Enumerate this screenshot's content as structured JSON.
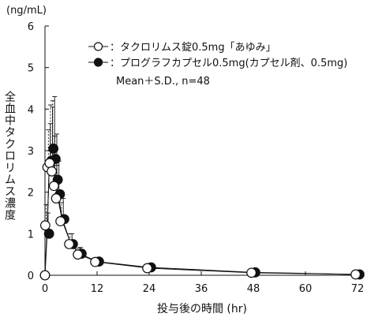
{
  "chart_data": {
    "type": "line",
    "unit_label": "(ng/mL)",
    "ylabel": "全血中タクロリムス濃度",
    "xlabel": "投与後の時間 (hr)",
    "xlim": [
      0,
      72
    ],
    "ylim": [
      0,
      6
    ],
    "x_ticks": [
      0,
      12,
      24,
      36,
      48,
      60,
      72
    ],
    "y_ticks": [
      0,
      1,
      2,
      3,
      4,
      5,
      6
    ],
    "grid": false,
    "legend_position": "top-right",
    "legend_note": "Mean＋S.D.,  n=48",
    "series": [
      {
        "name": "：タクロリムス錠0.5mg「あゆみ」",
        "marker": "open-circle",
        "x": [
          0,
          0.5,
          1,
          1.5,
          2,
          2.5,
          3,
          4,
          6,
          8,
          12,
          24,
          48,
          72
        ],
        "y": [
          0,
          1.2,
          2.6,
          2.7,
          2.5,
          2.15,
          1.85,
          1.3,
          0.75,
          0.5,
          0.32,
          0.17,
          0.06,
          0.02
        ],
        "sd": [
          0,
          0.5,
          0.9,
          1.4,
          1.7,
          1.2,
          0.8,
          0.45,
          0.25,
          0.15,
          0.1,
          0.07,
          0.03,
          0.02
        ]
      },
      {
        "name": "：プログラフカプセル0.5mg(カプセル剤、0.5mg)",
        "marker": "filled-circle",
        "x": [
          0,
          0.5,
          1,
          1.5,
          2,
          2.5,
          3,
          4,
          6,
          8,
          12,
          24,
          48,
          72
        ],
        "y": [
          0,
          1.0,
          2.75,
          3.05,
          2.8,
          2.3,
          1.95,
          1.35,
          0.75,
          0.52,
          0.33,
          0.19,
          0.07,
          0.02
        ],
        "sd": [
          0,
          0.5,
          0.9,
          1.0,
          1.5,
          1.1,
          0.8,
          0.5,
          0.25,
          0.15,
          0.1,
          0.08,
          0.03,
          0.02
        ]
      }
    ]
  }
}
